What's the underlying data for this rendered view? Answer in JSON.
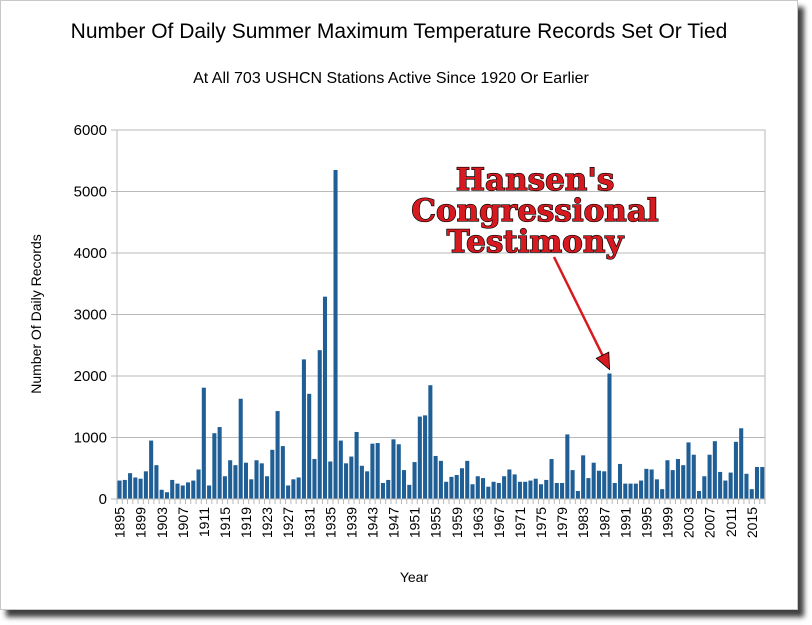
{
  "chart_data": {
    "type": "bar",
    "title": "Number Of Daily Summer Maximum Temperature Records Set Or Tied",
    "subtitle": "At All 703 USHCN Stations Active Since 1920 Or Earlier",
    "xlabel": "Year",
    "ylabel": "Number Of Daily Records",
    "ylim": [
      0,
      6000
    ],
    "yticks": [
      0,
      1000,
      2000,
      3000,
      4000,
      5000,
      6000
    ],
    "grid": true,
    "legend": "none",
    "bar_color": "#1f5f96",
    "x_start": 1895,
    "x_tick_labels": [
      "1895",
      "1899",
      "1903",
      "1907",
      "1911",
      "1915",
      "1919",
      "1923",
      "1927",
      "1931",
      "1935",
      "1939",
      "1943",
      "1947",
      "1951",
      "1955",
      "1959",
      "1963",
      "1967",
      "1971",
      "1975",
      "1979",
      "1983",
      "1987",
      "1991",
      "1995",
      "1999",
      "2003",
      "2007",
      "2011",
      "2015"
    ],
    "values": [
      300,
      310,
      420,
      350,
      330,
      450,
      950,
      550,
      150,
      110,
      310,
      250,
      220,
      270,
      300,
      480,
      1810,
      220,
      1070,
      1170,
      370,
      630,
      550,
      1630,
      590,
      320,
      630,
      580,
      370,
      800,
      1430,
      860,
      220,
      320,
      350,
      2270,
      1710,
      650,
      2420,
      3290,
      610,
      5350,
      950,
      580,
      690,
      1090,
      540,
      450,
      900,
      910,
      260,
      310,
      970,
      890,
      470,
      230,
      600,
      1340,
      1360,
      1850,
      700,
      620,
      280,
      360,
      390,
      500,
      620,
      240,
      370,
      340,
      200,
      280,
      260,
      370,
      480,
      400,
      280,
      280,
      300,
      330,
      240,
      310,
      650,
      260,
      260,
      1050,
      470,
      130,
      710,
      340,
      590,
      460,
      450,
      2040,
      260,
      570,
      250,
      250,
      250,
      300,
      490,
      480,
      320,
      160,
      630,
      470,
      650,
      550,
      920,
      720,
      130,
      370,
      720,
      940,
      440,
      300,
      430,
      930,
      1150,
      410,
      160,
      520,
      520
    ]
  },
  "annotation": {
    "lines": [
      "Hansen's",
      "Congressional",
      "Testimony"
    ],
    "target_year": 1988,
    "color": "#d71920"
  }
}
